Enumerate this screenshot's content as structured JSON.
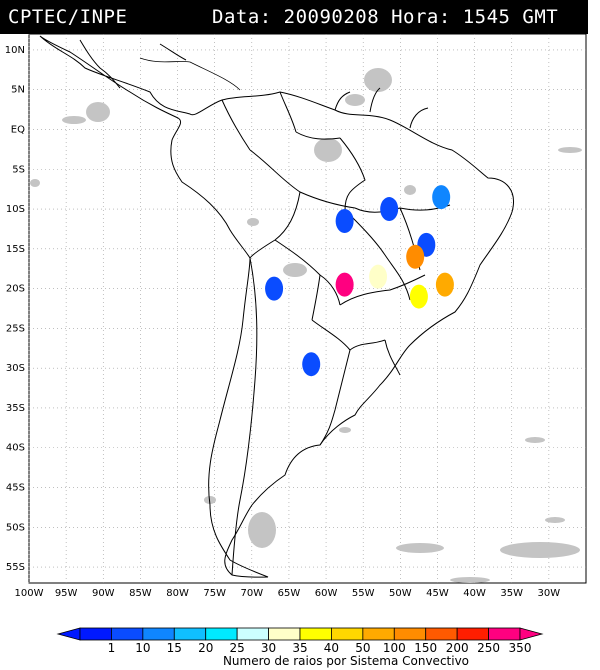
{
  "header": {
    "source": "CPTEC/INPE",
    "datetime": "Data: 20090208 Hora: 1545 GMT"
  },
  "map": {
    "region": "South America",
    "lat_labels": [
      "10N",
      "5N",
      "EQ",
      "5S",
      "10S",
      "15S",
      "20S",
      "25S",
      "30S",
      "35S",
      "40S",
      "45S",
      "50S",
      "55S"
    ],
    "lon_labels": [
      "100W",
      "95W",
      "90W",
      "85W",
      "80W",
      "75W",
      "70W",
      "65W",
      "60W",
      "55W",
      "50W",
      "45W",
      "40W",
      "35W",
      "30W"
    ],
    "grid": "dotted",
    "satellite_clouds_color": "#bdbdbd"
  },
  "legend": {
    "caption": "Numero de raios por Sistema Convectivo",
    "labels": [
      "1",
      "10",
      "15",
      "20",
      "25",
      "30",
      "35",
      "40",
      "50",
      "100",
      "150",
      "200",
      "250",
      "350"
    ],
    "colors": [
      "#0019ff",
      "#0a4cff",
      "#0f86ff",
      "#10bfff",
      "#00eaff",
      "#ccffff",
      "#ffffc8",
      "#ffff00",
      "#ffd700",
      "#ffaa00",
      "#ff8c00",
      "#ff5a00",
      "#ff1e00",
      "#ff0080"
    ]
  },
  "systems": [
    {
      "lon": -57.5,
      "lat": -11.5,
      "color": "#0a4cff"
    },
    {
      "lon": -51.5,
      "lat": -10.0,
      "color": "#0a4cff"
    },
    {
      "lon": -44.5,
      "lat": -8.5,
      "color": "#0f86ff"
    },
    {
      "lon": -46.5,
      "lat": -14.5,
      "color": "#0a4cff"
    },
    {
      "lon": -48.0,
      "lat": -16.0,
      "color": "#ff8c00"
    },
    {
      "lon": -47.5,
      "lat": -21.0,
      "color": "#ffff00"
    },
    {
      "lon": -44.0,
      "lat": -19.5,
      "color": "#ffaa00"
    },
    {
      "lon": -57.5,
      "lat": -19.5,
      "color": "#ff0080"
    },
    {
      "lon": -53.0,
      "lat": -18.5,
      "color": "#ffffc8"
    },
    {
      "lon": -62.0,
      "lat": -29.5,
      "color": "#0a4cff"
    },
    {
      "lon": -67.0,
      "lat": -20.0,
      "color": "#0a4cff"
    }
  ]
}
